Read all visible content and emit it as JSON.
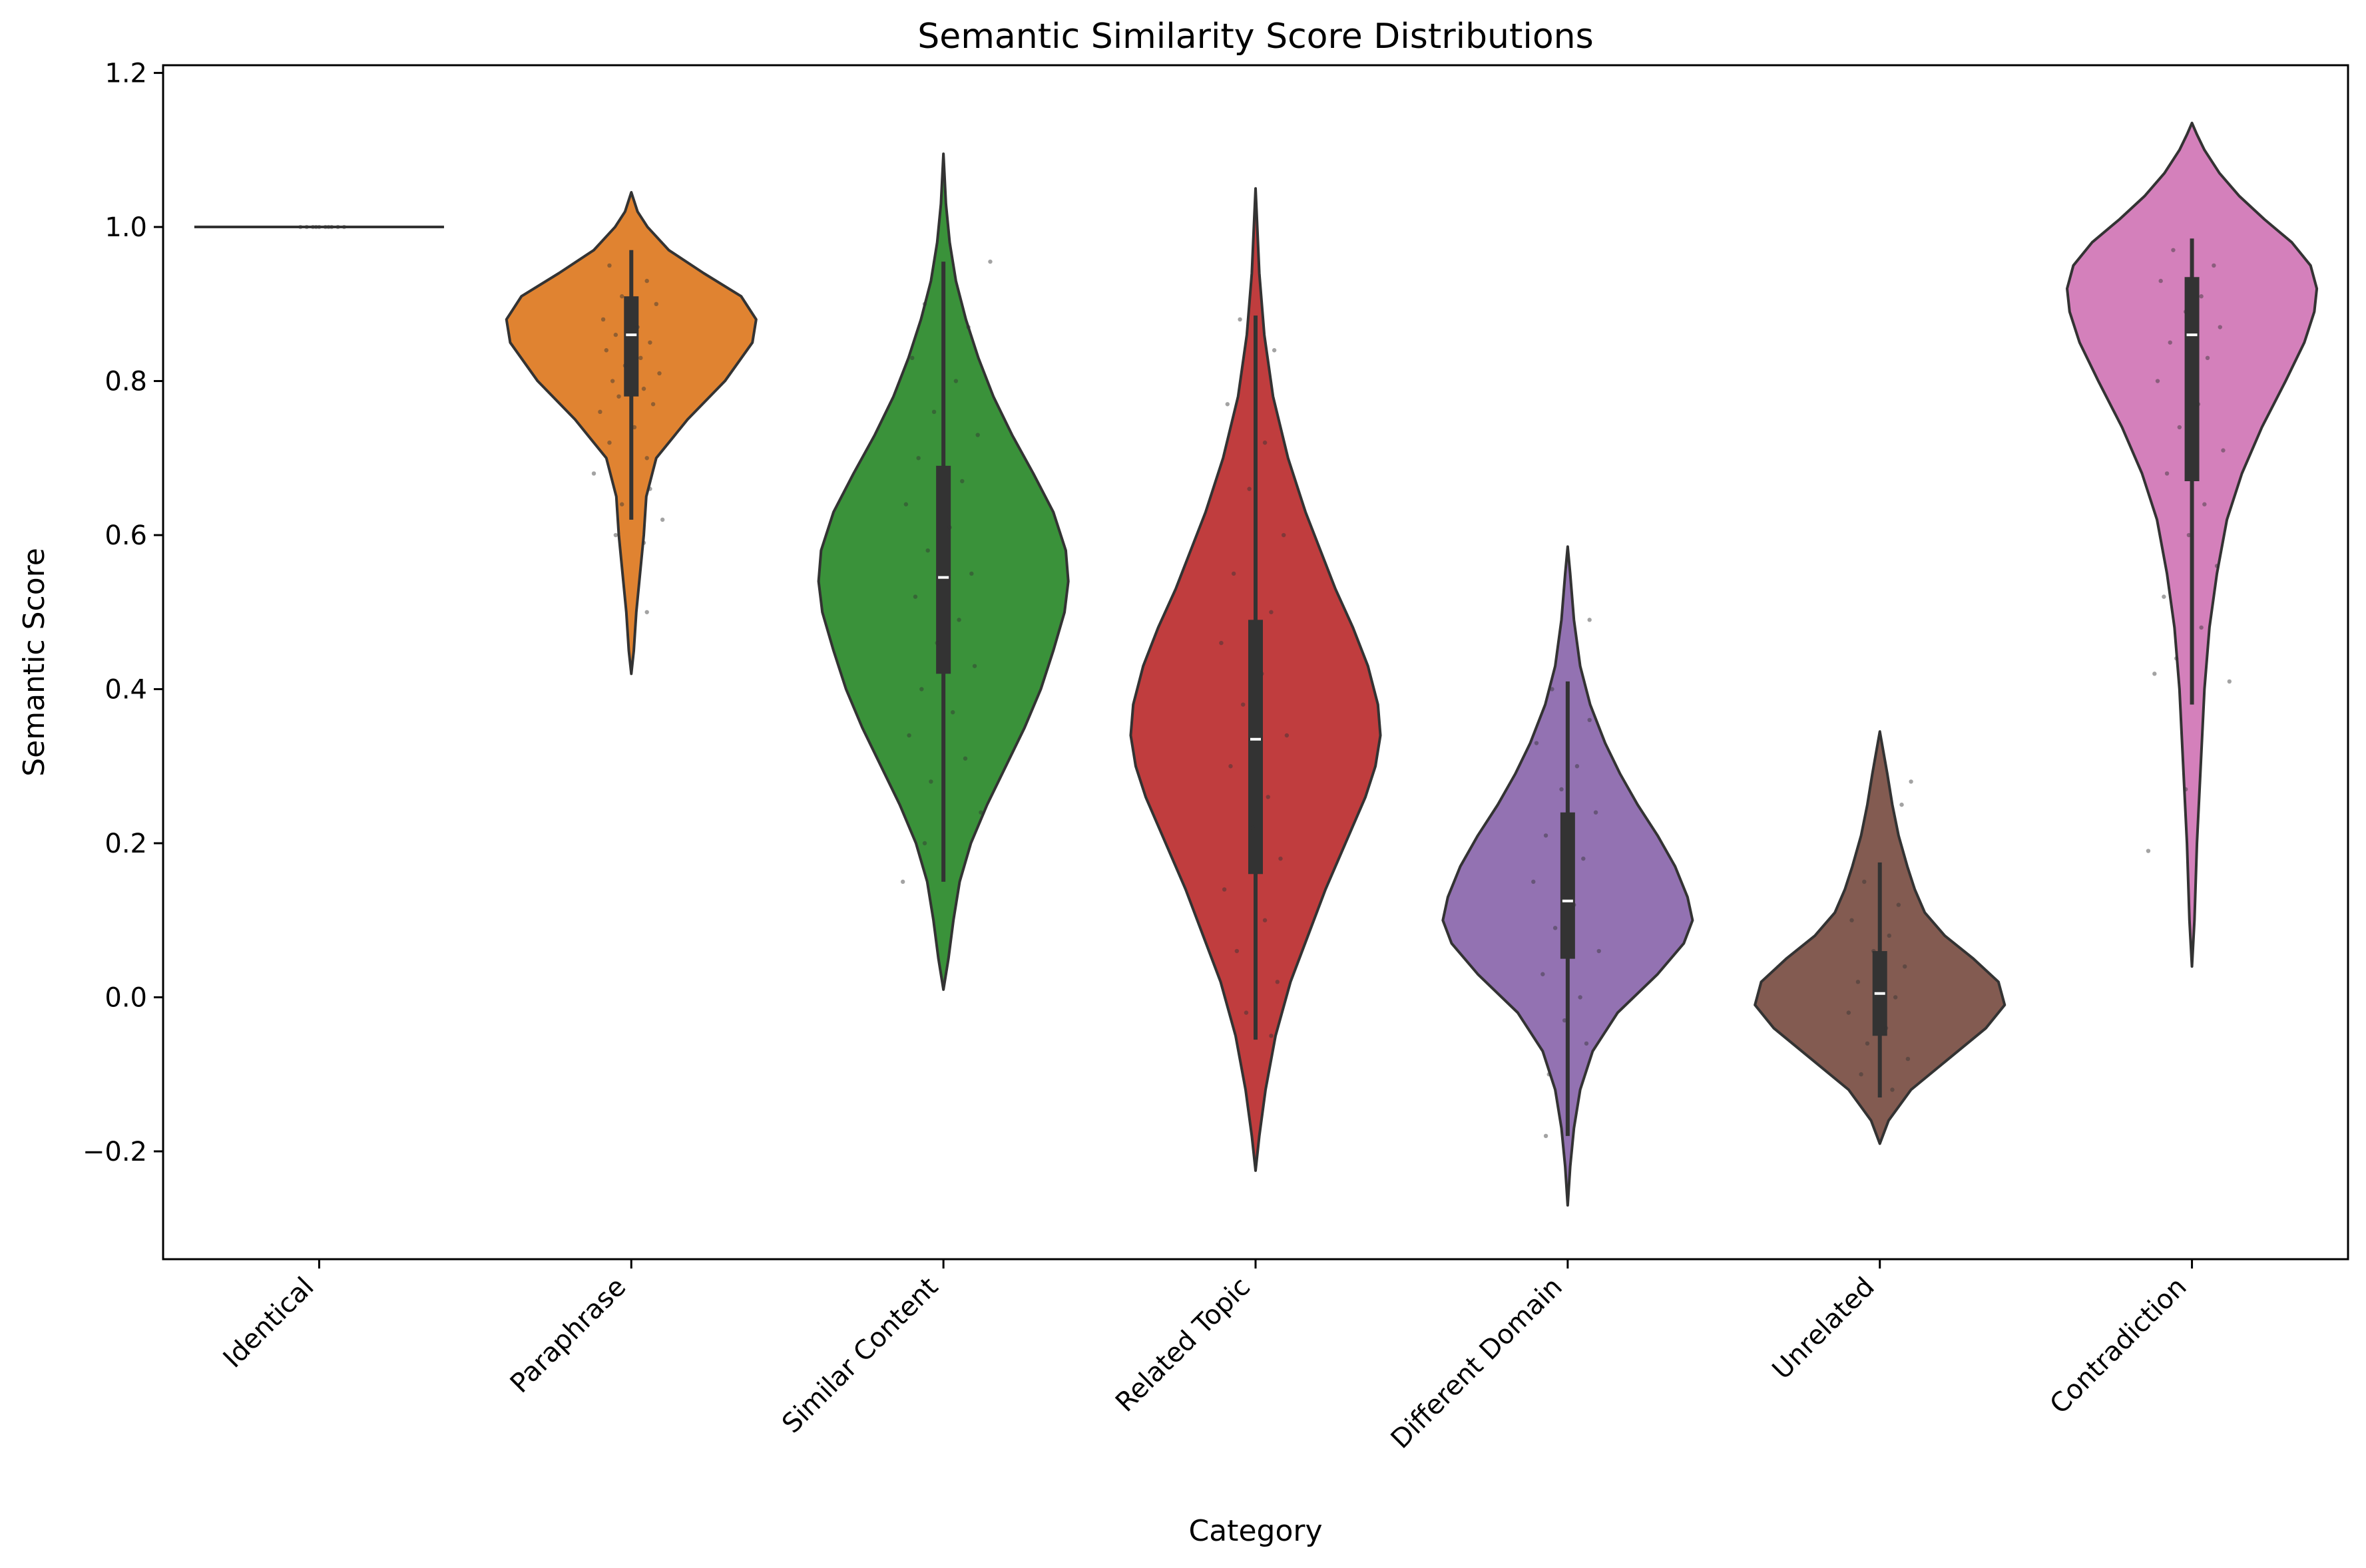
{
  "chart_data": {
    "type": "violin",
    "title": "Semantic Similarity Score Distributions",
    "xlabel": "Category",
    "ylabel": "Semantic Score",
    "ylim": [
      -0.34,
      1.21
    ],
    "yticks": [
      -0.2,
      0.0,
      0.2,
      0.4,
      0.6,
      0.8,
      1.0,
      1.2
    ],
    "ytick_labels": [
      "−0.2",
      "0.0",
      "0.2",
      "0.4",
      "0.6",
      "0.8",
      "1.0",
      "1.2"
    ],
    "grid": false,
    "categories": [
      "Identical",
      "Paraphrase",
      "Similar Content",
      "Related Topic",
      "Different Domain",
      "Unrelated",
      "Contradiction"
    ],
    "series": [
      {
        "category": "Identical",
        "color": "#1f77b4",
        "min": 1.0,
        "q1": 1.0,
        "median": 1.0,
        "q3": 1.0,
        "max": 1.0,
        "density": [
          [
            1.0,
            1.0
          ]
        ],
        "points": [
          [
            -0.04,
            1.0
          ],
          [
            -0.02,
            1.0
          ],
          [
            0.0,
            1.0
          ],
          [
            0.02,
            1.0
          ],
          [
            0.04,
            1.0
          ],
          [
            -0.06,
            1.0
          ],
          [
            0.06,
            1.0
          ],
          [
            -0.01,
            1.0
          ],
          [
            0.03,
            1.0
          ],
          [
            0.08,
            1.0
          ]
        ]
      },
      {
        "category": "Paraphrase",
        "color": "#e08331",
        "min": 0.62,
        "q1": 0.78,
        "median": 0.86,
        "q3": 0.91,
        "max": 0.97,
        "density": [
          [
            0.42,
            0.0
          ],
          [
            0.45,
            0.02
          ],
          [
            0.5,
            0.04
          ],
          [
            0.55,
            0.07
          ],
          [
            0.6,
            0.1
          ],
          [
            0.65,
            0.12
          ],
          [
            0.7,
            0.2
          ],
          [
            0.75,
            0.45
          ],
          [
            0.8,
            0.75
          ],
          [
            0.85,
            0.97
          ],
          [
            0.88,
            1.0
          ],
          [
            0.91,
            0.88
          ],
          [
            0.94,
            0.58
          ],
          [
            0.97,
            0.3
          ],
          [
            1.0,
            0.13
          ],
          [
            1.02,
            0.05
          ],
          [
            1.045,
            0.0
          ]
        ],
        "points": [
          [
            -0.07,
            0.95
          ],
          [
            0.05,
            0.93
          ],
          [
            -0.03,
            0.91
          ],
          [
            0.08,
            0.9
          ],
          [
            -0.09,
            0.88
          ],
          [
            0.02,
            0.87
          ],
          [
            -0.05,
            0.86
          ],
          [
            0.06,
            0.85
          ],
          [
            -0.08,
            0.84
          ],
          [
            0.03,
            0.83
          ],
          [
            -0.02,
            0.82
          ],
          [
            0.09,
            0.81
          ],
          [
            -0.06,
            0.8
          ],
          [
            0.04,
            0.79
          ],
          [
            -0.04,
            0.78
          ],
          [
            0.07,
            0.77
          ],
          [
            -0.1,
            0.76
          ],
          [
            0.01,
            0.74
          ],
          [
            -0.07,
            0.72
          ],
          [
            0.05,
            0.7
          ],
          [
            -0.12,
            0.68
          ],
          [
            0.06,
            0.66
          ],
          [
            -0.03,
            0.64
          ],
          [
            0.1,
            0.62
          ],
          [
            -0.05,
            0.6
          ],
          [
            0.04,
            0.59
          ],
          [
            0.05,
            0.5
          ]
        ]
      },
      {
        "category": "Similar Content",
        "color": "#3a923a",
        "min": 0.15,
        "q1": 0.42,
        "median": 0.545,
        "q3": 0.69,
        "max": 0.955,
        "density": [
          [
            0.01,
            0.0
          ],
          [
            0.05,
            0.04
          ],
          [
            0.1,
            0.08
          ],
          [
            0.15,
            0.13
          ],
          [
            0.2,
            0.22
          ],
          [
            0.25,
            0.35
          ],
          [
            0.3,
            0.5
          ],
          [
            0.35,
            0.65
          ],
          [
            0.4,
            0.78
          ],
          [
            0.45,
            0.88
          ],
          [
            0.5,
            0.97
          ],
          [
            0.54,
            1.0
          ],
          [
            0.58,
            0.98
          ],
          [
            0.63,
            0.88
          ],
          [
            0.68,
            0.72
          ],
          [
            0.73,
            0.55
          ],
          [
            0.78,
            0.4
          ],
          [
            0.83,
            0.28
          ],
          [
            0.88,
            0.18
          ],
          [
            0.93,
            0.1
          ],
          [
            0.98,
            0.05
          ],
          [
            1.03,
            0.02
          ],
          [
            1.095,
            0.0
          ]
        ],
        "points": [
          [
            -0.06,
            0.9
          ],
          [
            0.08,
            0.87
          ],
          [
            -0.1,
            0.83
          ],
          [
            0.04,
            0.8
          ],
          [
            -0.03,
            0.76
          ],
          [
            0.11,
            0.73
          ],
          [
            -0.08,
            0.7
          ],
          [
            0.06,
            0.67
          ],
          [
            -0.12,
            0.64
          ],
          [
            0.02,
            0.61
          ],
          [
            -0.05,
            0.58
          ],
          [
            0.09,
            0.55
          ],
          [
            -0.09,
            0.52
          ],
          [
            0.05,
            0.49
          ],
          [
            -0.02,
            0.46
          ],
          [
            0.1,
            0.43
          ],
          [
            -0.07,
            0.4
          ],
          [
            0.03,
            0.37
          ],
          [
            -0.11,
            0.34
          ],
          [
            0.07,
            0.31
          ],
          [
            -0.04,
            0.28
          ],
          [
            0.12,
            0.24
          ],
          [
            -0.06,
            0.2
          ],
          [
            -0.13,
            0.15
          ],
          [
            0.15,
            0.955
          ]
        ]
      },
      {
        "category": "Related Topic",
        "color": "#c03d3e",
        "min": -0.055,
        "q1": 0.16,
        "median": 0.335,
        "q3": 0.49,
        "max": 0.885,
        "density": [
          [
            -0.225,
            0.0
          ],
          [
            -0.18,
            0.03
          ],
          [
            -0.12,
            0.08
          ],
          [
            -0.05,
            0.16
          ],
          [
            0.02,
            0.28
          ],
          [
            0.08,
            0.42
          ],
          [
            0.14,
            0.56
          ],
          [
            0.2,
            0.72
          ],
          [
            0.26,
            0.88
          ],
          [
            0.3,
            0.96
          ],
          [
            0.34,
            1.0
          ],
          [
            0.38,
            0.98
          ],
          [
            0.43,
            0.9
          ],
          [
            0.48,
            0.78
          ],
          [
            0.53,
            0.64
          ],
          [
            0.58,
            0.52
          ],
          [
            0.63,
            0.4
          ],
          [
            0.7,
            0.26
          ],
          [
            0.78,
            0.14
          ],
          [
            0.86,
            0.07
          ],
          [
            0.94,
            0.03
          ],
          [
            1.05,
            0.0
          ]
        ],
        "points": [
          [
            -0.05,
            0.88
          ],
          [
            0.06,
            0.84
          ],
          [
            -0.09,
            0.77
          ],
          [
            0.03,
            0.72
          ],
          [
            -0.02,
            0.66
          ],
          [
            0.09,
            0.6
          ],
          [
            -0.07,
            0.55
          ],
          [
            0.05,
            0.5
          ],
          [
            -0.11,
            0.46
          ],
          [
            0.02,
            0.42
          ],
          [
            -0.04,
            0.38
          ],
          [
            0.1,
            0.34
          ],
          [
            -0.08,
            0.3
          ],
          [
            0.04,
            0.26
          ],
          [
            -0.01,
            0.22
          ],
          [
            0.08,
            0.18
          ],
          [
            -0.1,
            0.14
          ],
          [
            0.03,
            0.1
          ],
          [
            -0.06,
            0.06
          ],
          [
            0.07,
            0.02
          ],
          [
            -0.03,
            -0.02
          ],
          [
            0.05,
            -0.05
          ]
        ]
      },
      {
        "category": "Different Domain",
        "color": "#9372b2",
        "min": -0.18,
        "q1": 0.05,
        "median": 0.125,
        "q3": 0.24,
        "max": 0.41,
        "density": [
          [
            -0.27,
            0.0
          ],
          [
            -0.22,
            0.02
          ],
          [
            -0.17,
            0.05
          ],
          [
            -0.12,
            0.1
          ],
          [
            -0.07,
            0.2
          ],
          [
            -0.02,
            0.4
          ],
          [
            0.03,
            0.72
          ],
          [
            0.07,
            0.93
          ],
          [
            0.1,
            1.0
          ],
          [
            0.13,
            0.96
          ],
          [
            0.17,
            0.86
          ],
          [
            0.21,
            0.72
          ],
          [
            0.25,
            0.56
          ],
          [
            0.29,
            0.42
          ],
          [
            0.33,
            0.3
          ],
          [
            0.38,
            0.18
          ],
          [
            0.43,
            0.1
          ],
          [
            0.49,
            0.05
          ],
          [
            0.55,
            0.02
          ],
          [
            0.585,
            0.0
          ]
        ],
        "points": [
          [
            -0.05,
            0.4
          ],
          [
            0.07,
            0.36
          ],
          [
            -0.1,
            0.33
          ],
          [
            0.03,
            0.3
          ],
          [
            -0.02,
            0.27
          ],
          [
            0.09,
            0.24
          ],
          [
            -0.07,
            0.21
          ],
          [
            0.05,
            0.18
          ],
          [
            -0.11,
            0.15
          ],
          [
            0.02,
            0.12
          ],
          [
            -0.04,
            0.09
          ],
          [
            0.1,
            0.06
          ],
          [
            -0.08,
            0.03
          ],
          [
            0.04,
            0.0
          ],
          [
            -0.01,
            -0.03
          ],
          [
            0.06,
            -0.06
          ],
          [
            -0.06,
            -0.1
          ],
          [
            0.07,
            0.49
          ],
          [
            -0.07,
            -0.18
          ]
        ]
      },
      {
        "category": "Unrelated",
        "color": "#835b51",
        "min": -0.13,
        "q1": -0.05,
        "median": 0.005,
        "q3": 0.06,
        "max": 0.175,
        "density": [
          [
            -0.19,
            0.0
          ],
          [
            -0.16,
            0.07
          ],
          [
            -0.12,
            0.25
          ],
          [
            -0.08,
            0.55
          ],
          [
            -0.04,
            0.85
          ],
          [
            -0.01,
            1.0
          ],
          [
            0.02,
            0.95
          ],
          [
            0.05,
            0.75
          ],
          [
            0.08,
            0.52
          ],
          [
            0.11,
            0.36
          ],
          [
            0.14,
            0.28
          ],
          [
            0.17,
            0.22
          ],
          [
            0.21,
            0.15
          ],
          [
            0.25,
            0.1
          ],
          [
            0.29,
            0.06
          ],
          [
            0.345,
            0.0
          ]
        ],
        "points": [
          [
            -0.05,
            0.15
          ],
          [
            0.06,
            0.12
          ],
          [
            -0.09,
            0.1
          ],
          [
            0.03,
            0.08
          ],
          [
            -0.02,
            0.06
          ],
          [
            0.08,
            0.04
          ],
          [
            -0.07,
            0.02
          ],
          [
            0.05,
            0.0
          ],
          [
            -0.1,
            -0.02
          ],
          [
            0.02,
            -0.04
          ],
          [
            -0.04,
            -0.06
          ],
          [
            0.09,
            -0.08
          ],
          [
            -0.06,
            -0.1
          ],
          [
            0.04,
            -0.12
          ],
          [
            0.1,
            0.28
          ],
          [
            0.07,
            0.25
          ]
        ]
      },
      {
        "category": "Contradiction",
        "color": "#d480bb",
        "min": 0.38,
        "q1": 0.67,
        "median": 0.86,
        "q3": 0.935,
        "max": 0.985,
        "density": [
          [
            0.04,
            0.0
          ],
          [
            0.1,
            0.02
          ],
          [
            0.2,
            0.04
          ],
          [
            0.3,
            0.07
          ],
          [
            0.4,
            0.1
          ],
          [
            0.48,
            0.14
          ],
          [
            0.55,
            0.2
          ],
          [
            0.62,
            0.28
          ],
          [
            0.68,
            0.4
          ],
          [
            0.74,
            0.56
          ],
          [
            0.8,
            0.75
          ],
          [
            0.85,
            0.9
          ],
          [
            0.89,
            0.98
          ],
          [
            0.92,
            1.0
          ],
          [
            0.95,
            0.95
          ],
          [
            0.98,
            0.8
          ],
          [
            1.01,
            0.58
          ],
          [
            1.04,
            0.38
          ],
          [
            1.07,
            0.22
          ],
          [
            1.1,
            0.1
          ],
          [
            1.12,
            0.04
          ],
          [
            1.135,
            0.0
          ]
        ],
        "points": [
          [
            -0.06,
            0.97
          ],
          [
            0.07,
            0.95
          ],
          [
            -0.1,
            0.93
          ],
          [
            0.03,
            0.91
          ],
          [
            -0.02,
            0.89
          ],
          [
            0.09,
            0.87
          ],
          [
            -0.07,
            0.85
          ],
          [
            0.05,
            0.83
          ],
          [
            -0.11,
            0.8
          ],
          [
            0.02,
            0.77
          ],
          [
            -0.04,
            0.74
          ],
          [
            0.1,
            0.71
          ],
          [
            -0.08,
            0.68
          ],
          [
            0.04,
            0.64
          ],
          [
            -0.01,
            0.6
          ],
          [
            0.08,
            0.56
          ],
          [
            -0.09,
            0.52
          ],
          [
            0.03,
            0.48
          ],
          [
            -0.05,
            0.44
          ],
          [
            -0.12,
            0.42
          ],
          [
            0.12,
            0.41
          ],
          [
            -0.14,
            0.19
          ],
          [
            -0.02,
            0.27
          ]
        ]
      }
    ]
  }
}
